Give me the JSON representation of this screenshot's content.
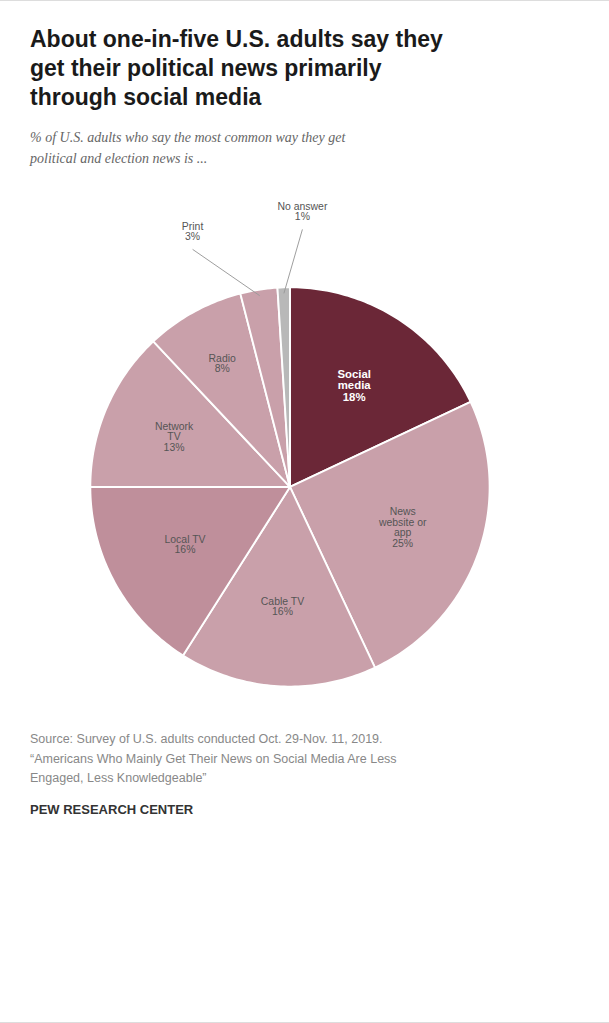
{
  "chart_data": {
    "type": "pie",
    "title": "About one-in-five U.S. adults say they\nget their political news primarily\nthrough social media",
    "subtitle": "% of U.S. adults who say the most common way they get\npolitical and election news is ...",
    "source": "Source: Survey of U.S. adults conducted Oct. 29-Nov. 11, 2019.\n“Americans Who Mainly Get Their News on Social Media Are Less\nEngaged, Less Knowledgeable”",
    "footer": "PEW RESEARCH CENTER",
    "categories": [
      "Social\nmedia",
      "News\nwebsite or\napp",
      "Cable TV",
      "Local TV",
      "Network\nTV",
      "Radio",
      "Print",
      "No answer"
    ],
    "values": [
      18,
      25,
      16,
      16,
      13,
      8,
      3,
      1
    ],
    "value_labels": [
      "18%",
      "25%",
      "16%",
      "16%",
      "13%",
      "8%",
      "3%",
      "1%"
    ],
    "colors": [
      "#6b2737",
      "#c9a0aa",
      "#c9a0aa",
      "#bf8f9b",
      "#c9a0aa",
      "#c9a0aa",
      "#c9a0aa",
      "#b8b8b8"
    ],
    "data_labels": true
  }
}
